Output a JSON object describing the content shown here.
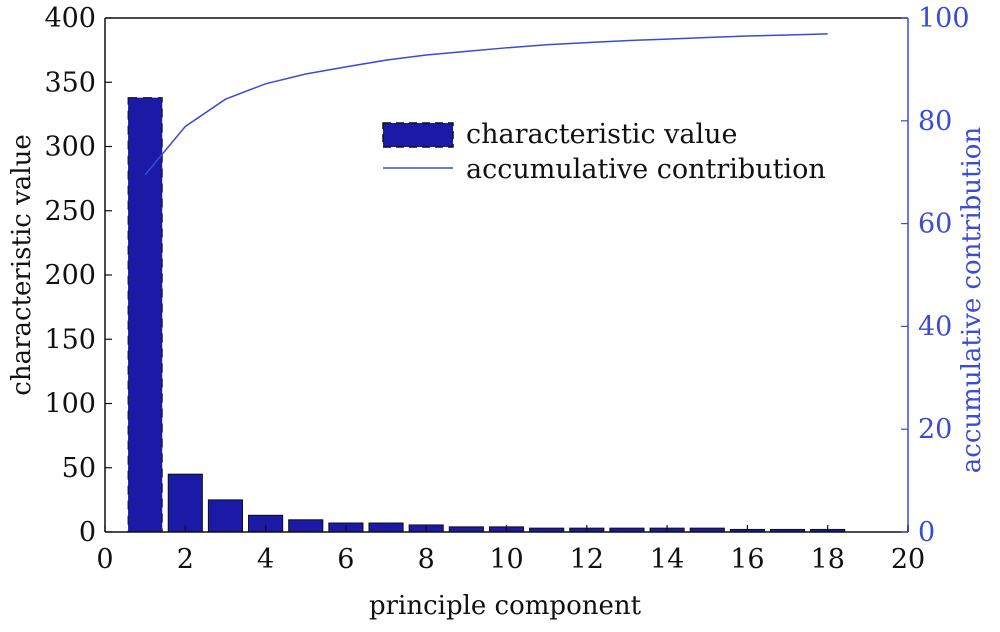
{
  "chart_data": {
    "type": "bar",
    "xlabel": "principle component",
    "ylabel": "characteristic value",
    "y2label": "accumulative contribution",
    "xlim": [
      0,
      20
    ],
    "ylim": [
      0,
      400
    ],
    "y2lim": [
      0,
      100
    ],
    "xticks": [
      "0",
      "2",
      "4",
      "6",
      "8",
      "10",
      "12",
      "14",
      "16",
      "18",
      "20"
    ],
    "yticks": [
      "0",
      "50",
      "100",
      "150",
      "200",
      "250",
      "300",
      "350",
      "400"
    ],
    "y2ticks": [
      "0",
      "20",
      "40",
      "60",
      "80",
      "100"
    ],
    "legend_position": "top-right",
    "grid": false,
    "series": [
      {
        "name": "characteristic value",
        "type": "bar",
        "axis": "left",
        "color": "#1a1aa6",
        "x": [
          1,
          2,
          3,
          4,
          5,
          6,
          7,
          8,
          9,
          10,
          11,
          12,
          13,
          14,
          15,
          16,
          17,
          18
        ],
        "values": [
          338,
          45,
          25,
          13,
          9.5,
          7,
          7,
          5.5,
          4,
          4,
          3,
          3,
          3,
          3,
          3,
          2,
          2,
          2
        ]
      },
      {
        "name": "accumulative contribution",
        "type": "line",
        "axis": "right",
        "color": "#3a4bd4",
        "x": [
          1,
          2,
          3,
          4,
          5,
          6,
          7,
          8,
          9,
          10,
          11,
          12,
          13,
          14,
          15,
          16,
          17,
          18
        ],
        "values": [
          69.5,
          78.9,
          84.2,
          87.2,
          89.1,
          90.5,
          91.8,
          92.8,
          93.5,
          94.2,
          94.8,
          95.2,
          95.6,
          95.9,
          96.2,
          96.5,
          96.7,
          96.9
        ]
      }
    ]
  }
}
